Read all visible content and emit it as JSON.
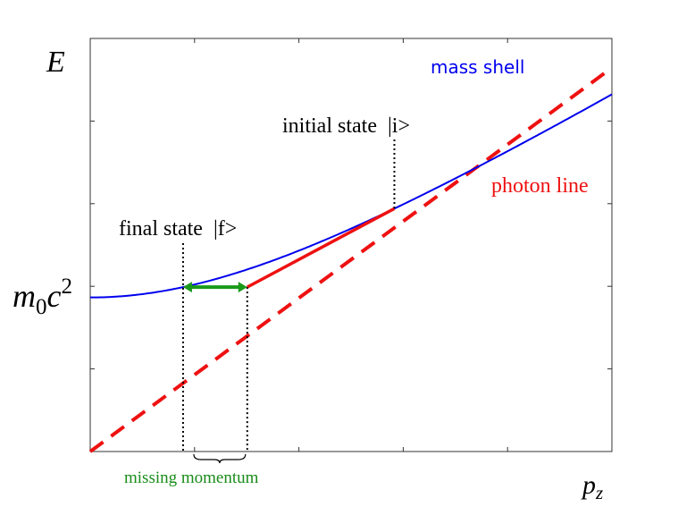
{
  "chart_data": {
    "type": "line",
    "title": "",
    "xlabel": "p",
    "xlabel_sub": "z",
    "ylabel": "E",
    "xlim": [
      0,
      1
    ],
    "ylim": [
      0,
      1
    ],
    "grid": false,
    "rest_energy_label": {
      "base": "m",
      "sub": "0",
      "mid": "c",
      "sup": "2"
    },
    "series": [
      {
        "name": "mass shell",
        "color": "#0000ee",
        "style": "solid",
        "function": "hyperbola",
        "E0": 0.373,
        "slope": 0.78,
        "x": [
          0,
          0.1,
          0.2,
          0.3,
          0.4,
          0.5,
          0.6,
          0.7,
          0.8,
          0.9,
          1.0
        ],
        "y": [
          0.373,
          0.382,
          0.408,
          0.448,
          0.498,
          0.556,
          0.619,
          0.686,
          0.756,
          0.828,
          0.902
        ]
      },
      {
        "name": "photon line",
        "color": "#ee1111",
        "style": "dashed",
        "x": [
          0,
          1.0
        ],
        "y": [
          0,
          0.929
        ]
      }
    ],
    "annotations": {
      "initial_state": {
        "label": "initial state  |i>",
        "x": 0.583
      },
      "final_state": {
        "label": "final state  |f>",
        "x": 0.178
      },
      "transition_end_x": 0.301,
      "missing_momentum": {
        "label": "missing momentum",
        "color": "#1a8c1a"
      },
      "transition_color": "#ee1111",
      "arrow_color": "#1a9a1a"
    },
    "x_ticks": [
      0.2,
      0.4,
      0.6,
      0.8
    ],
    "y_ticks": [
      0.2,
      0.4,
      0.6,
      0.8
    ]
  }
}
